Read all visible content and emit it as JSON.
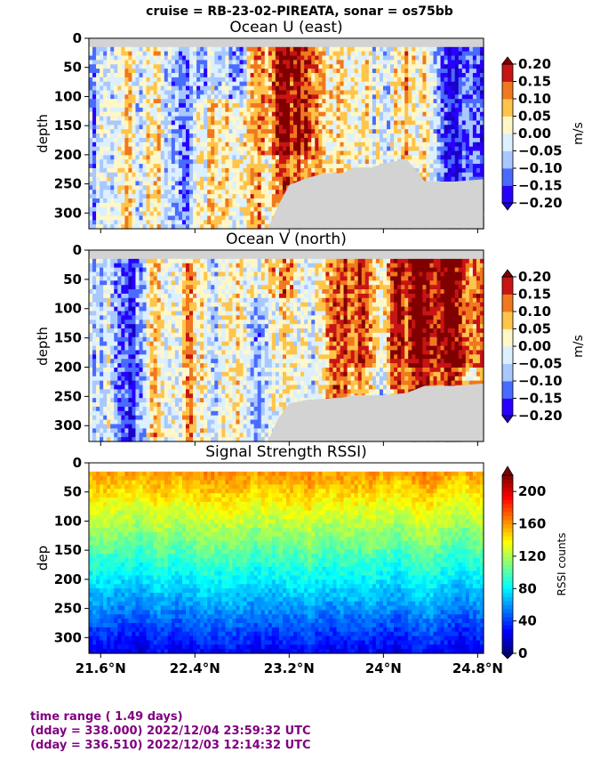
{
  "suptitle": "cruise = RB-23-02-PIREATA,  sonar = os75bb",
  "footer": {
    "line1": "time range ( 1.49 days)",
    "line2": "(dday = 338.000) 2022/12/04 23:59:32 UTC",
    "line3": "(dday = 336.510) 2022/12/03 12:14:32 UTC"
  },
  "colors": {
    "no_data": "#d3d3d3",
    "footer_text": "#800080",
    "velocity_levels": [
      "#2800ff",
      "#4a6bff",
      "#a8c8ff",
      "#dcf0ff",
      "#fff7c8",
      "#ffc44a",
      "#f0781e",
      "#c81414"
    ],
    "velocity_under": "#1a00c8",
    "velocity_over": "#800000"
  },
  "chart_data": [
    {
      "type": "heatmap",
      "title": "Ocean U (east)",
      "xlabel": "",
      "ylabel": "depth",
      "colorbar_label": "m/s",
      "x_ticks": [
        "21.6°N",
        "22.4°N",
        "23.2°N",
        "24°N",
        "24.8°N"
      ],
      "x_tick_values": [
        21.6,
        22.4,
        23.2,
        24.0,
        24.8
      ],
      "xlim": [
        21.5,
        24.85
      ],
      "y_ticks": [
        "0",
        "50",
        "100",
        "150",
        "200",
        "250",
        "300"
      ],
      "y_tick_values": [
        0,
        50,
        100,
        150,
        200,
        250,
        300
      ],
      "ylim": [
        327,
        0
      ],
      "colorbar_ticks": [
        "0.20",
        "0.15",
        "0.10",
        "0.05",
        "0.00",
        "−0.05",
        "−0.10",
        "−0.15",
        "−0.20"
      ],
      "colorbar_values": [
        0.2,
        0.15,
        0.1,
        0.05,
        0.0,
        -0.05,
        -0.1,
        -0.15,
        -0.2
      ],
      "vmin": -0.2,
      "vmax": 0.2,
      "bottom_depth_profile": [
        [
          21.5,
          327
        ],
        [
          23.02,
          327
        ],
        [
          23.1,
          290
        ],
        [
          23.2,
          252
        ],
        [
          23.35,
          240
        ],
        [
          23.5,
          232
        ],
        [
          23.65,
          232
        ],
        [
          23.75,
          222
        ],
        [
          23.9,
          222
        ],
        [
          24.0,
          215
        ],
        [
          24.08,
          212
        ],
        [
          24.2,
          208
        ],
        [
          24.35,
          246
        ],
        [
          24.6,
          246
        ],
        [
          24.85,
          242
        ]
      ],
      "surface_gap_depth": 15
    },
    {
      "type": "heatmap",
      "title": "Ocean V (north)",
      "xlabel": "",
      "ylabel": "depth",
      "colorbar_label": "m/s",
      "x_ticks": [
        "21.6°N",
        "22.4°N",
        "23.2°N",
        "24°N",
        "24.8°N"
      ],
      "x_tick_values": [
        21.6,
        22.4,
        23.2,
        24.0,
        24.8
      ],
      "xlim": [
        21.5,
        24.85
      ],
      "y_ticks": [
        "0",
        "50",
        "100",
        "150",
        "200",
        "250",
        "300"
      ],
      "y_tick_values": [
        0,
        50,
        100,
        150,
        200,
        250,
        300
      ],
      "ylim": [
        327,
        0
      ],
      "colorbar_ticks": [
        "0.20",
        "0.15",
        "0.10",
        "0.05",
        "0.00",
        "−0.05",
        "−0.10",
        "−0.15",
        "−0.20"
      ],
      "colorbar_values": [
        0.2,
        0.15,
        0.1,
        0.05,
        0.0,
        -0.05,
        -0.1,
        -0.15,
        -0.2
      ],
      "vmin": -0.2,
      "vmax": 0.2,
      "bottom_depth_profile": [
        [
          21.5,
          327
        ],
        [
          23.02,
          327
        ],
        [
          23.1,
          290
        ],
        [
          23.2,
          262
        ],
        [
          23.35,
          256
        ],
        [
          23.5,
          254
        ],
        [
          23.65,
          252
        ],
        [
          23.75,
          248
        ],
        [
          23.9,
          248
        ],
        [
          24.0,
          248
        ],
        [
          24.08,
          247
        ],
        [
          24.2,
          244
        ],
        [
          24.35,
          232
        ],
        [
          24.6,
          232
        ],
        [
          24.85,
          228
        ]
      ],
      "surface_gap_depth": 15
    },
    {
      "type": "heatmap",
      "title": "Signal Strength RSSI)",
      "xlabel": "",
      "ylabel": "dep",
      "colorbar_label": "RSSI counts",
      "x_ticks": [
        "21.6°N",
        "22.4°N",
        "23.2°N",
        "24°N",
        "24.8°N"
      ],
      "x_tick_values": [
        21.6,
        22.4,
        23.2,
        24.0,
        24.8
      ],
      "xlim": [
        21.5,
        24.85
      ],
      "y_ticks": [
        "0",
        "50",
        "100",
        "150",
        "200",
        "250",
        "300"
      ],
      "y_tick_values": [
        0,
        50,
        100,
        150,
        200,
        250,
        300
      ],
      "ylim": [
        327,
        0
      ],
      "colorbar_ticks": [
        "200",
        "160",
        "120",
        "80",
        "40",
        "0"
      ],
      "colorbar_values": [
        200,
        160,
        120,
        80,
        40,
        0
      ],
      "vmin": 0,
      "vmax": 220,
      "surface_gap_depth": 15
    }
  ]
}
